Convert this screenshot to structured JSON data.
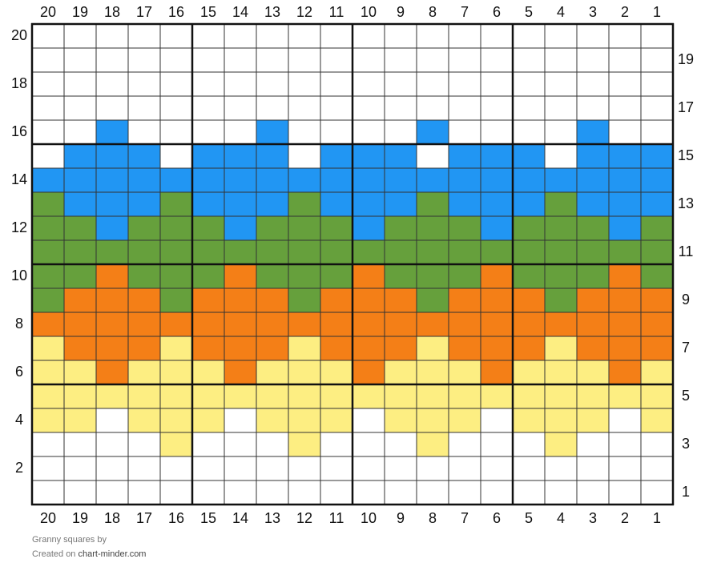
{
  "colors": {
    "W": "#ffffff",
    "B": "#2196f3",
    "G": "#66a03c",
    "O": "#f47f17",
    "Y": "#fdee82",
    "grid": "#333333",
    "major": "#111111"
  },
  "chart_data": {
    "type": "heatmap",
    "columns": 20,
    "rows_count": 20,
    "column_labels": [
      "20",
      "19",
      "18",
      "17",
      "16",
      "15",
      "14",
      "13",
      "12",
      "11",
      "10",
      "9",
      "8",
      "7",
      "6",
      "5",
      "4",
      "3",
      "2",
      "1"
    ],
    "row_labels_left": [
      "20",
      "18",
      "16",
      "14",
      "12",
      "10",
      "8",
      "6",
      "4",
      "2"
    ],
    "row_labels_right": [
      "19",
      "17",
      "15",
      "13",
      "11",
      "9",
      "7",
      "5",
      "3",
      "1"
    ],
    "legend_colors": [
      "W",
      "B",
      "G",
      "O",
      "Y"
    ],
    "rows": [
      "WWWWWWWWWWWWWWWWWWWW",
      "WWWWWWWWWWWWWWWWWWWW",
      "WWWWWWWWWWWWWWWWWWWW",
      "WWWWWWWWWWWWWWWWWWWW",
      "WWBWWWWBWWWWBWWWWBWW",
      "WBBBWBBBWBBBWBBBWBBB",
      "BBBBBBBBBBBBBBBBBBBB",
      "GBBBGBBBGBBBGBBBGBBB",
      "GGBGGGBGGGBGGGBGGGBG",
      "GGGGGGGGGGGGGGGGGGGG",
      "GGOGGGOGGGOGGGOGGGOG",
      "GOOOGOOOGOOOGOOOGOOO",
      "OOOOOOOOOOOOOOOOOOOO",
      "YOOOYOOOYOOOYOOOYOOO",
      "YYOYYYOYYYOYYYOYYYOY",
      "YYYYYYYYYYYYYYYYYYYY",
      "YYWYYYWYYYWYYYWYYYWY",
      "WWWWYWWWYWWWYWWWYWWW",
      "WWWWWWWWWWWWWWWWWWWW",
      "WWWWWWWWWWWWWWWWWWWW"
    ]
  },
  "footer": {
    "chart_name": "Granny squares",
    "by": "by",
    "created_on": "Created on",
    "site": "chart-minder.com"
  }
}
